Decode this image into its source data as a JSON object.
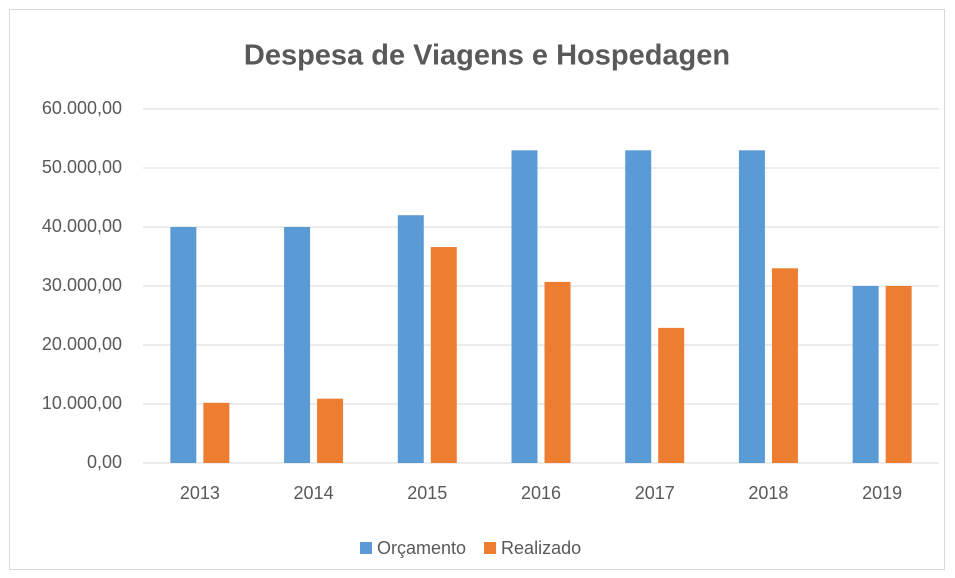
{
  "chart_data": {
    "type": "bar",
    "title": "Despesa de Viagens e Hospedagen",
    "categories": [
      "2013",
      "2014",
      "2015",
      "2016",
      "2017",
      "2018",
      "2019"
    ],
    "series": [
      {
        "name": "Orçamento",
        "color": "#5b9bd5",
        "values": [
          40000,
          40000,
          42000,
          53000,
          53000,
          53000,
          30000
        ]
      },
      {
        "name": "Realizado",
        "color": "#ed7d31",
        "values": [
          10200,
          10900,
          36600,
          30700,
          22900,
          33000,
          30000
        ]
      }
    ],
    "ylim": [
      0,
      60000
    ],
    "yticks": [
      {
        "value": 0,
        "label": "0,00"
      },
      {
        "value": 10000,
        "label": "10.000,00"
      },
      {
        "value": 20000,
        "label": "20.000,00"
      },
      {
        "value": 30000,
        "label": "30.000,00"
      },
      {
        "value": 40000,
        "label": "40.000,00"
      },
      {
        "value": 50000,
        "label": "50.000,00"
      },
      {
        "value": 60000,
        "label": "60.000,00"
      }
    ],
    "grid": true,
    "legend": "bottom"
  }
}
